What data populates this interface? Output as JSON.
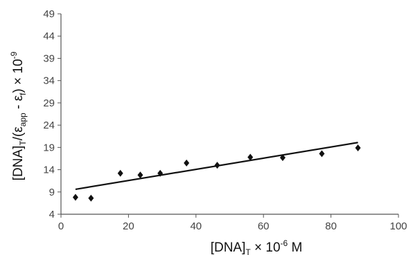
{
  "chart_data": {
    "type": "scatter",
    "title": "",
    "xlabel": {
      "base": "[DNA]",
      "sub": "T",
      "rest": " × 10",
      "sup": "-6",
      "unit": " M"
    },
    "ylabel": {
      "p1": "[DNA]",
      "sub1": "T",
      "p2": "/(ε",
      "sub2": "app",
      "p3": " - ε",
      "sub3": "f",
      "p4": ") × 10",
      "sup": "-9"
    },
    "xlim": [
      0,
      100
    ],
    "ylim": [
      4,
      49
    ],
    "xticks": [
      0,
      20,
      40,
      60,
      80,
      100
    ],
    "yticks": [
      4,
      9,
      14,
      19,
      24,
      29,
      34,
      39,
      44,
      49
    ],
    "grid": false,
    "marker_color": "#111111",
    "line_color": "#111111",
    "series": [
      {
        "x": [
          4.3,
          8.9,
          17.6,
          23.5,
          29.4,
          37.2,
          46.3,
          56.1,
          65.7,
          77.3,
          88.0
        ],
        "y": [
          7.8,
          7.6,
          13.2,
          12.8,
          13.2,
          15.5,
          15.0,
          16.8,
          16.7,
          17.6,
          18.9
        ]
      }
    ],
    "trendline": {
      "x": [
        4.3,
        88.0
      ],
      "y": [
        9.6,
        20.1
      ]
    }
  }
}
